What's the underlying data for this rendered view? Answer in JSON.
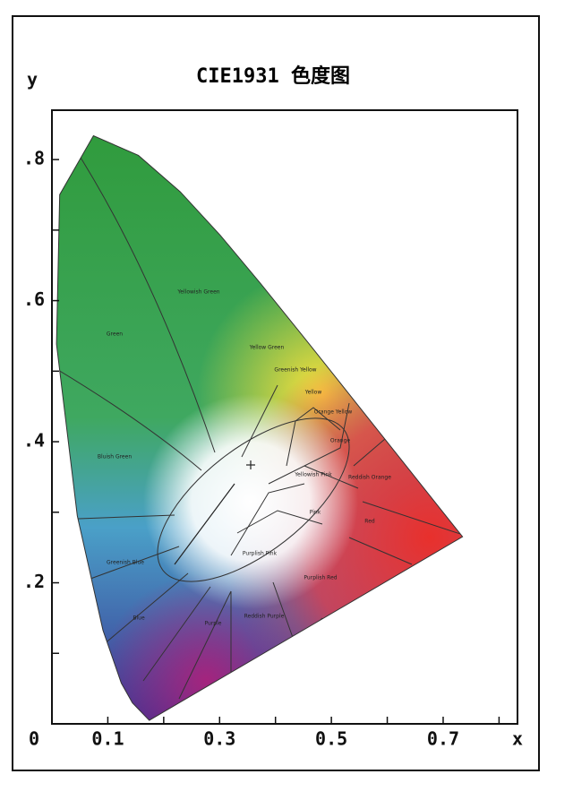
{
  "chart_data": {
    "type": "chromaticity",
    "title": "CIE1931 色度图",
    "x_label": "x",
    "y_label": "y",
    "xlim": [
      0,
      0.833
    ],
    "ylim": [
      0,
      0.87
    ],
    "xticks": [
      0,
      0.1,
      0.3,
      0.5,
      0.7
    ],
    "x_minor_ticks": [
      0.2,
      0.4,
      0.6,
      0.8
    ],
    "yticks": [
      {
        "value": 0.2,
        "label": ".2"
      },
      {
        "value": 0.4,
        "label": ".4"
      },
      {
        "value": 0.6,
        "label": ".6"
      },
      {
        "value": 0.8,
        "label": ".8"
      }
    ],
    "y_minor_ticks": [
      0.1,
      0.3,
      0.5,
      0.7
    ],
    "locus": {
      "x": [
        0.1741,
        0.144,
        0.1241,
        0.0913,
        0.0454,
        0.0082,
        0.0139,
        0.0743,
        0.1547,
        0.2296,
        0.3016,
        0.3731,
        0.4441,
        0.5125,
        0.5752,
        0.627,
        0.6915,
        0.7347
      ],
      "y": [
        0.005,
        0.0297,
        0.0578,
        0.1327,
        0.295,
        0.5384,
        0.7502,
        0.8338,
        0.8059,
        0.7543,
        0.6923,
        0.6245,
        0.5547,
        0.4866,
        0.4242,
        0.3725,
        0.3083,
        0.2653
      ]
    },
    "region_labels": [
      "Yellowish Green",
      "Green",
      "Yellow Green",
      "Greenish Yellow",
      "Yellow",
      "Orange Yellow",
      "Orange",
      "Bluish Green",
      "Yellowish Pink",
      "Reddish Orange",
      "Pink",
      "Red",
      "Greenish Blue",
      "Purplish Pink",
      "Purplish Red",
      "Reddish Purple",
      "Purple",
      "Blue"
    ]
  }
}
